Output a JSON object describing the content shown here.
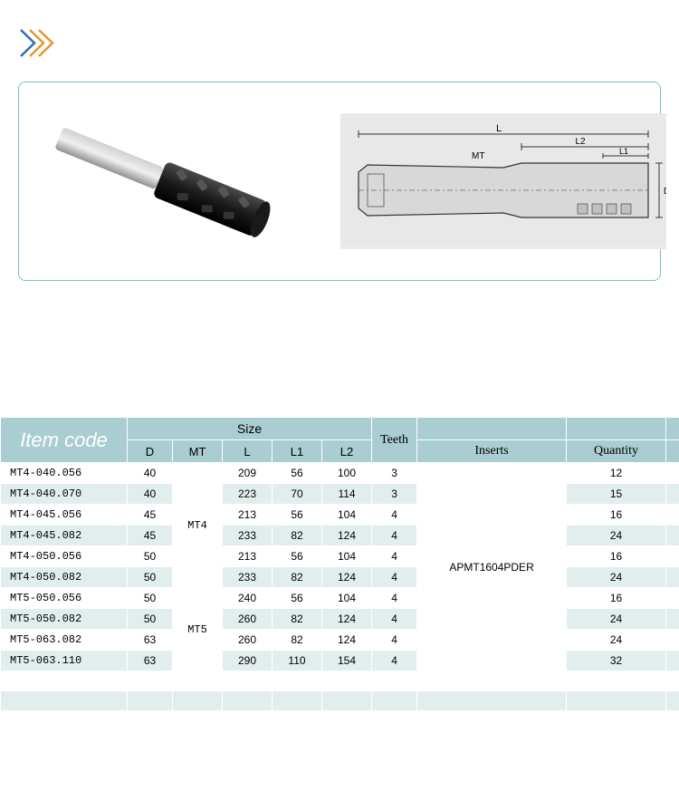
{
  "header_colors": {
    "bg": "#a9cdd0",
    "item_text": "#ffffff",
    "border": "#ffffff"
  },
  "row_colors": {
    "odd": "#ffffff",
    "even": "#e2eeee"
  },
  "image_box": {
    "border": "#7bbfc5"
  },
  "diagram_labels": {
    "L": "L",
    "L2": "L2",
    "L1": "L1",
    "MT": "MT",
    "D": "D"
  },
  "chevron_colors": [
    "#2d70b5",
    "#e6962e"
  ],
  "table": {
    "col_widths": [
      "140",
      "50",
      "55",
      "55",
      "55",
      "55",
      "50",
      "165",
      "110",
      "15"
    ],
    "item_label": "Item code",
    "size_label": "Size",
    "teeth_label": "Teeth",
    "inserts_label": "Inserts",
    "quantity_label": "Quantity",
    "size_cols": [
      "D",
      "MT",
      "L",
      "L1",
      "L2"
    ],
    "mt_groups": [
      {
        "label": "MT4",
        "start": 0,
        "span": 6
      },
      {
        "label": "MT5",
        "start": 6,
        "span": 4
      }
    ],
    "insert_group": {
      "label": "APMT1604PDER",
      "span": 10
    },
    "rows": [
      {
        "item": "MT4-040.056",
        "D": "40",
        "L": "209",
        "L1": "56",
        "L2": "100",
        "Teeth": "3",
        "Qty": "12"
      },
      {
        "item": "MT4-040.070",
        "D": "40",
        "L": "223",
        "L1": "70",
        "L2": "114",
        "Teeth": "3",
        "Qty": "15"
      },
      {
        "item": "MT4-045.056",
        "D": "45",
        "L": "213",
        "L1": "56",
        "L2": "104",
        "Teeth": "4",
        "Qty": "16"
      },
      {
        "item": "MT4-045.082",
        "D": "45",
        "L": "233",
        "L1": "82",
        "L2": "124",
        "Teeth": "4",
        "Qty": "24"
      },
      {
        "item": "MT4-050.056",
        "D": "50",
        "L": "213",
        "L1": "56",
        "L2": "104",
        "Teeth": "4",
        "Qty": "16"
      },
      {
        "item": "MT4-050.082",
        "D": "50",
        "L": "233",
        "L1": "82",
        "L2": "124",
        "Teeth": "4",
        "Qty": "24"
      },
      {
        "item": "MT5-050.056",
        "D": "50",
        "L": "240",
        "L1": "56",
        "L2": "104",
        "Teeth": "4",
        "Qty": "16"
      },
      {
        "item": "MT5-050.082",
        "D": "50",
        "L": "260",
        "L1": "82",
        "L2": "124",
        "Teeth": "4",
        "Qty": "24"
      },
      {
        "item": "MT5-063.082",
        "D": "63",
        "L": "260",
        "L1": "82",
        "L2": "124",
        "Teeth": "4",
        "Qty": "24"
      },
      {
        "item": "MT5-063.110",
        "D": "63",
        "L": "290",
        "L1": "110",
        "L2": "154",
        "Teeth": "4",
        "Qty": "32"
      }
    ],
    "empty_rows": 3
  }
}
